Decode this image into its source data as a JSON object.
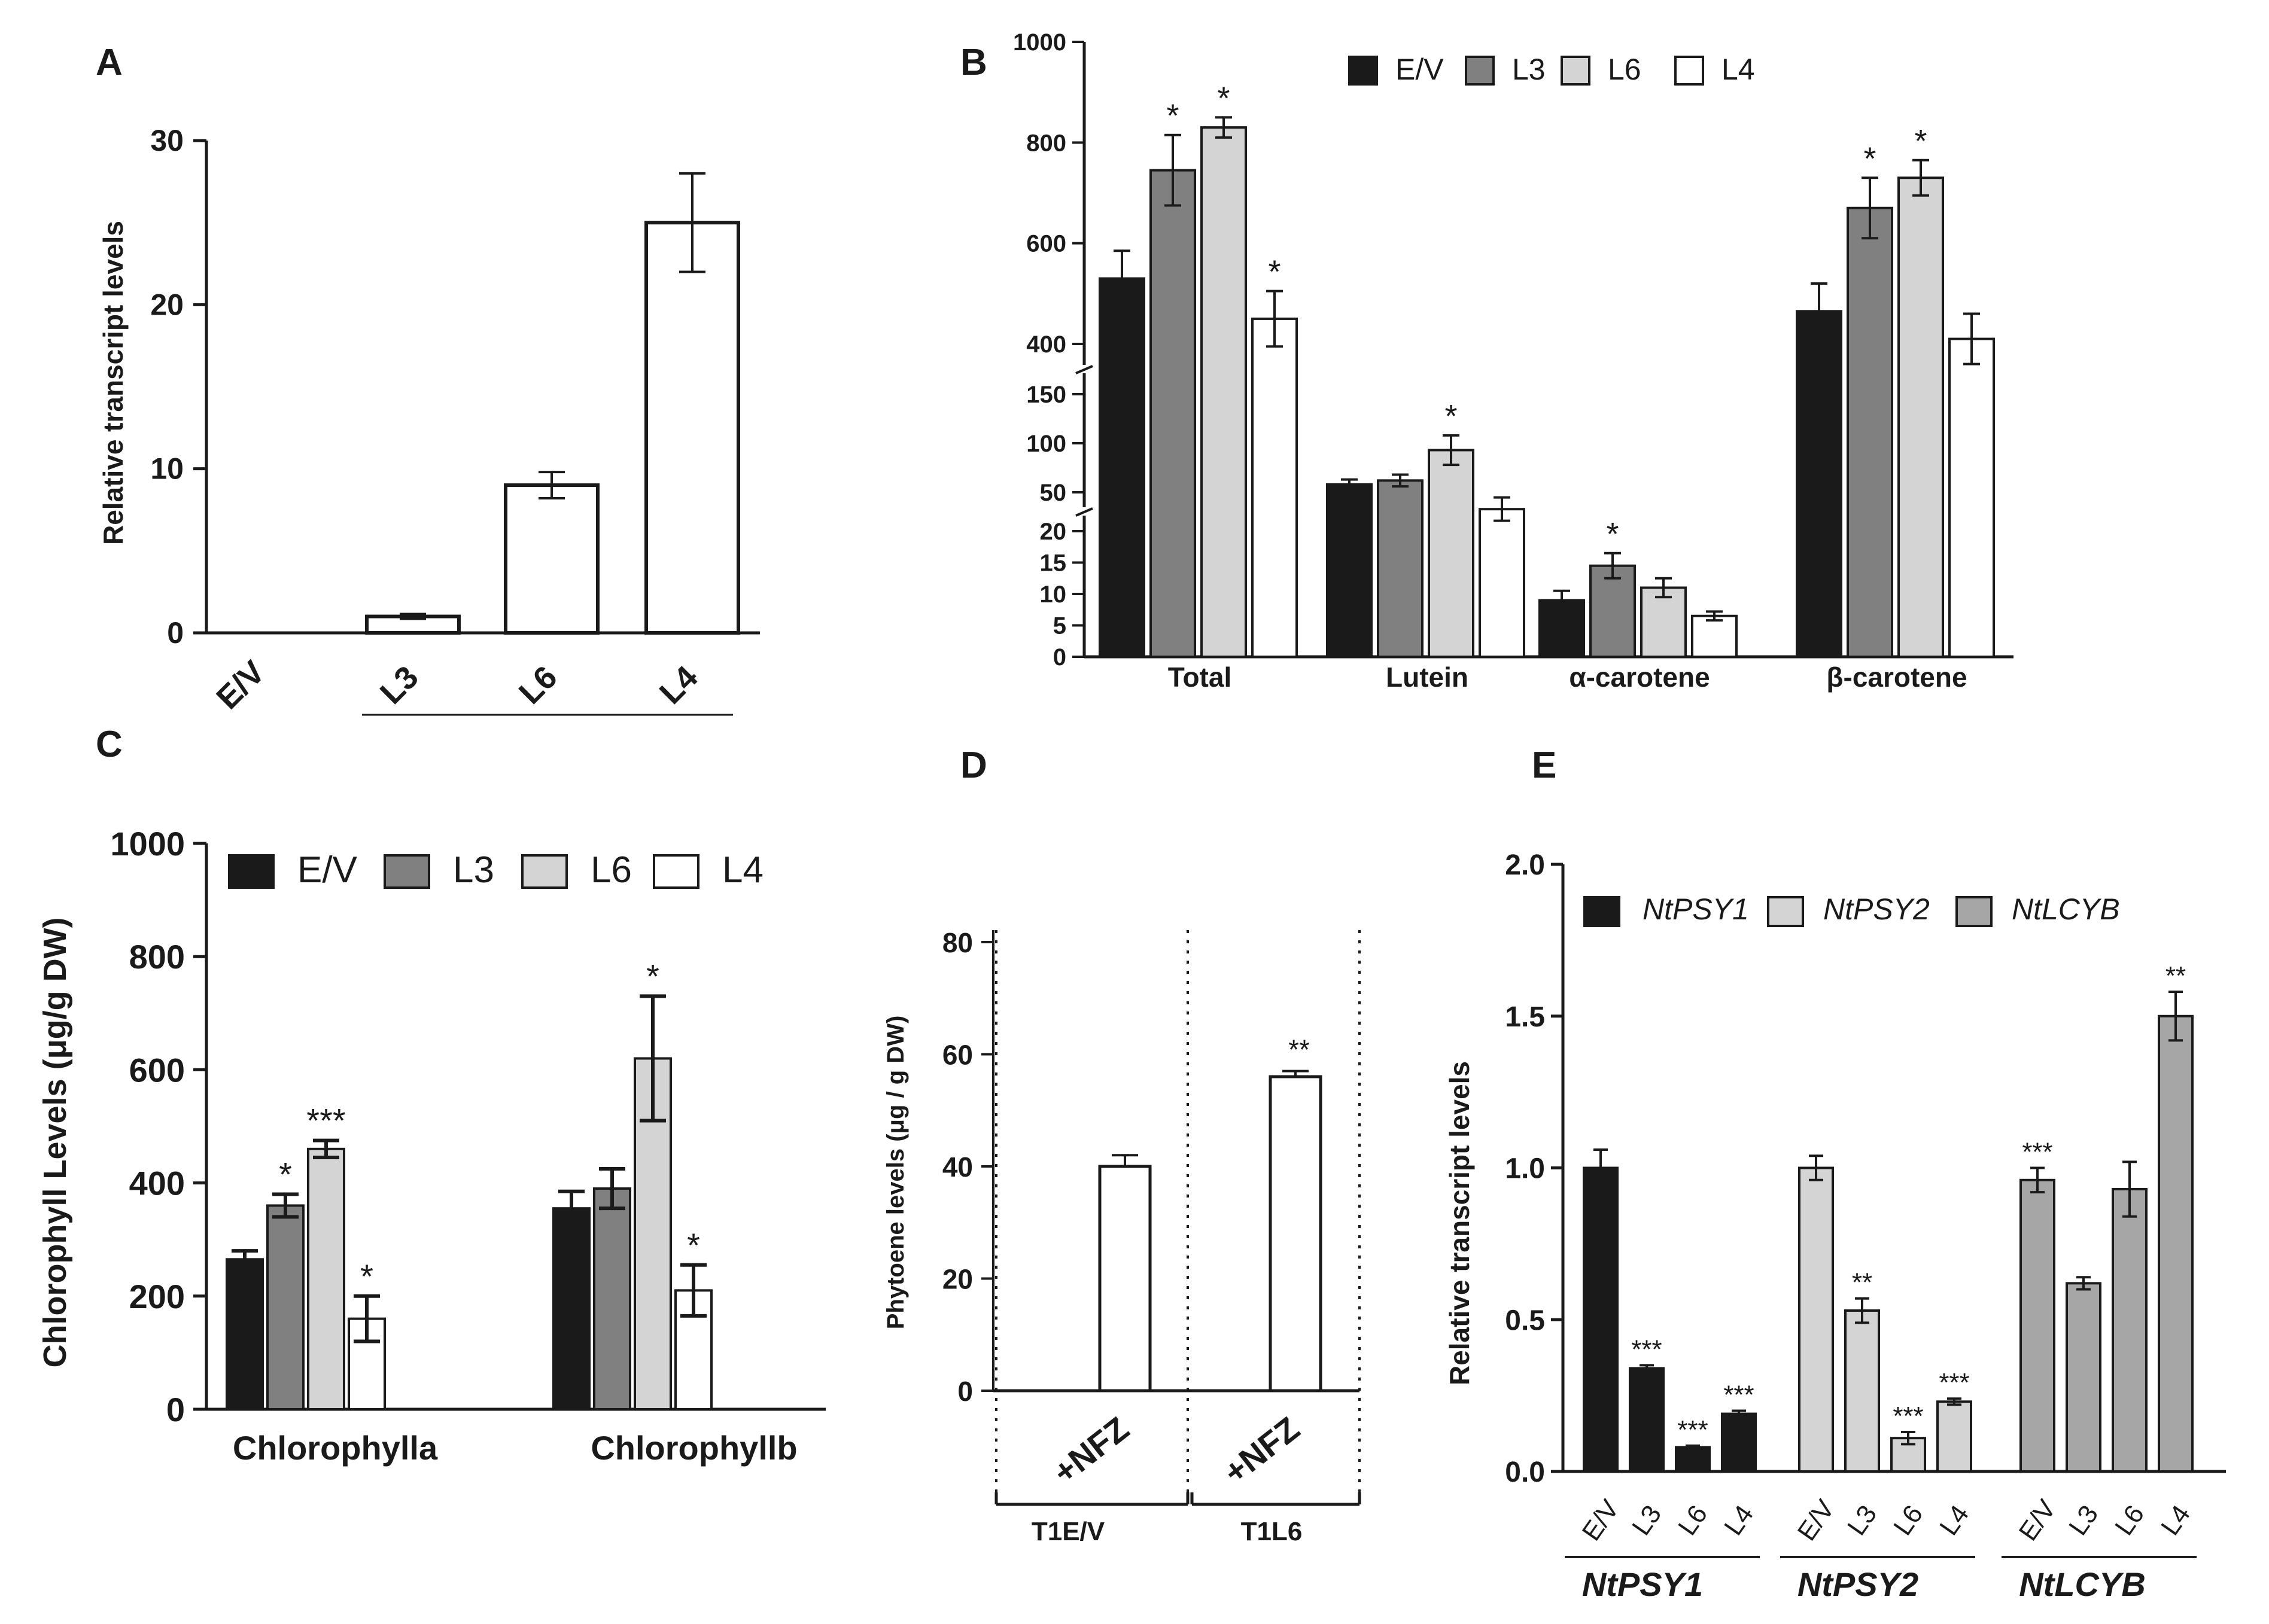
{
  "colors": {
    "EV": "#1a1a1a",
    "L3": "#808080",
    "L6": "#d4d4d4",
    "L4": "#ffffff",
    "PSY1": "#1a1a1a",
    "PSY2": "#d4d4d4",
    "LCYB": "#a6a6a6"
  },
  "panels": {
    "A": "A",
    "B": "B",
    "C": "C",
    "D": "D",
    "E": "E"
  },
  "chart_data": [
    {
      "id": "A",
      "type": "bar",
      "ylabel": "Relative transcript levels",
      "categories": [
        "E/V",
        "L3",
        "L6",
        "L4"
      ],
      "values": [
        0,
        1,
        9,
        25
      ],
      "errors": [
        0,
        0.15,
        0.8,
        3
      ],
      "ylim": [
        0,
        30
      ],
      "yticks": [
        "0",
        "10",
        "20",
        "30"
      ]
    },
    {
      "id": "B",
      "type": "bar",
      "ylabel": "",
      "legend": [
        "E/V",
        "L3",
        "L6",
        "L4"
      ],
      "categories": [
        "Total",
        "Lutein",
        "α-carotene",
        "β-carotene"
      ],
      "series": [
        {
          "name": "E/V",
          "values": [
            530,
            58,
            9,
            465
          ],
          "errors": [
            55,
            5,
            1.5,
            55
          ],
          "sig": [
            "",
            "",
            "",
            ""
          ]
        },
        {
          "name": "L3",
          "values": [
            745,
            62,
            14.5,
            670
          ],
          "errors": [
            70,
            6,
            2,
            60
          ],
          "sig": [
            "*",
            "",
            "*",
            "*"
          ]
        },
        {
          "name": "L6",
          "values": [
            830,
            93,
            11,
            730
          ],
          "errors": [
            20,
            15,
            1.5,
            35
          ],
          "sig": [
            "*",
            "*",
            "",
            "*"
          ]
        },
        {
          "name": "L4",
          "values": [
            450,
            37,
            6.5,
            410
          ],
          "errors": [
            55,
            9,
            0.7,
            50
          ],
          "sig": [
            "*",
            "",
            "",
            ""
          ]
        }
      ],
      "ylim": [
        0,
        1000
      ],
      "yticks": [
        "0",
        "5",
        "10",
        "15",
        "20",
        "50",
        "100",
        "150",
        "400",
        "600",
        "800",
        "1000"
      ],
      "axis_breaks": [
        20,
        150
      ]
    },
    {
      "id": "C",
      "type": "bar",
      "ylabel": "Chlorophyll Levels (μg/g DW)",
      "legend": [
        "E/V",
        "L3",
        "L6",
        "L4"
      ],
      "categories": [
        "Chlorophylla",
        "Chlorophyllb"
      ],
      "series": [
        {
          "name": "E/V",
          "values": [
            265,
            355
          ],
          "errors": [
            15,
            30
          ],
          "sig": [
            "",
            ""
          ]
        },
        {
          "name": "L3",
          "values": [
            360,
            390
          ],
          "errors": [
            20,
            35
          ],
          "sig": [
            "*",
            ""
          ]
        },
        {
          "name": "L6",
          "values": [
            460,
            620
          ],
          "errors": [
            15,
            110
          ],
          "sig": [
            "***",
            "*"
          ]
        },
        {
          "name": "L4",
          "values": [
            160,
            210
          ],
          "errors": [
            40,
            45
          ],
          "sig": [
            "*",
            "*"
          ]
        }
      ],
      "ylim": [
        0,
        1000
      ],
      "yticks": [
        "0",
        "200",
        "400",
        "600",
        "800",
        "1000"
      ]
    },
    {
      "id": "D",
      "type": "bar",
      "ylabel": "Phytoene levels (μg / g DW)",
      "categories": [
        "+NFZ",
        "+NFZ"
      ],
      "groups": [
        "T1E/V",
        "T1L6"
      ],
      "values": [
        40,
        56
      ],
      "errors": [
        2,
        1
      ],
      "sig": [
        "",
        "**"
      ],
      "ylim": [
        0,
        80
      ],
      "yticks": [
        "0",
        "20",
        "40",
        "60",
        "80"
      ]
    },
    {
      "id": "E",
      "type": "bar",
      "ylabel": "Relative transcript levels",
      "legend": [
        "NtPSY1",
        "NtPSY2",
        "NtLCYB"
      ],
      "groups": [
        "NtPSY1",
        "NtPSY2",
        "NtLCYB"
      ],
      "categories": [
        "E/V",
        "L3",
        "L6",
        "L4"
      ],
      "series": [
        {
          "name": "NtPSY1",
          "values": [
            1.0,
            0.34,
            0.08,
            0.19
          ],
          "errors": [
            0.06,
            0.01,
            0.005,
            0.01
          ],
          "sig": [
            "",
            "***",
            "***",
            "***"
          ]
        },
        {
          "name": "NtPSY2",
          "values": [
            1.0,
            0.53,
            0.11,
            0.23
          ],
          "errors": [
            0.04,
            0.04,
            0.02,
            0.01
          ],
          "sig": [
            "",
            "**",
            "***",
            "***"
          ]
        },
        {
          "name": "NtLCYB",
          "values": [
            0.96,
            0.62,
            0.93,
            1.5
          ],
          "errors": [
            0.04,
            0.02,
            0.09,
            0.08
          ],
          "sig": [
            "***",
            "",
            "",
            "**"
          ]
        }
      ],
      "ylim": [
        0,
        2.0
      ],
      "yticks": [
        "0.0",
        "0.5",
        "1.0",
        "1.5",
        "2.0"
      ]
    }
  ]
}
